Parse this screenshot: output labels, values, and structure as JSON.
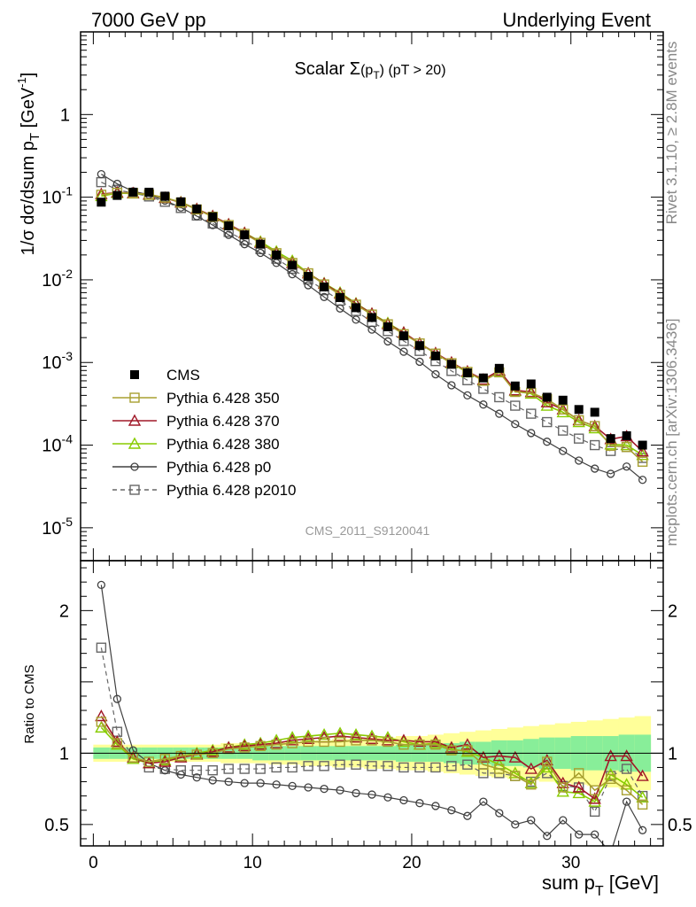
{
  "header": {
    "left": "7000 GeV pp",
    "right": "Underlying Event"
  },
  "side": {
    "rivet": "Rivet 3.1.10, ≥ 2.8M events",
    "source": "mcplots.cern.ch [arXiv:1306.3436]"
  },
  "labels": {
    "analysis": "CMS_2011_S9120041",
    "ratio_ylabel": "Ratio to CMS"
  },
  "title_parts": {
    "pre": "Scalar ",
    "sigma": "Σ",
    "args": "(p",
    "sub": "T",
    "close": ")",
    "cut": " (pT > 20)"
  },
  "ylabel_parts": {
    "main": "1/σ dσ/dsum p",
    "sub": "T",
    "unit": " [GeV",
    "exp": "-1",
    "close": "]"
  },
  "xlabel_parts": {
    "main": "sum p",
    "sub": "T",
    "unit": " [GeV]"
  },
  "colors": {
    "cms": "#000000",
    "p350": "#a8a030",
    "p370": "#a01828",
    "p380": "#88cc00",
    "p0": "#404040",
    "p2010": "#666666",
    "band_outer": "#ffff99",
    "band_inner": "#88ee99"
  },
  "chart_data": {
    "type": "line",
    "x": [
      0.5,
      1.5,
      2.5,
      3.5,
      4.5,
      5.5,
      6.5,
      7.5,
      8.5,
      9.5,
      10.5,
      11.5,
      12.5,
      13.5,
      14.5,
      15.5,
      16.5,
      17.5,
      18.5,
      19.5,
      20.5,
      21.5,
      22.5,
      23.5,
      24.5,
      25.5,
      26.5,
      27.5,
      28.5,
      29.5,
      30.5,
      31.5,
      32.5,
      33.5,
      34.5
    ],
    "main": {
      "yscale": "log",
      "ylim": [
        4e-06,
        10
      ],
      "yticks": [
        {
          "v": 1e-05,
          "base": "10",
          "exp": "-5"
        },
        {
          "v": 0.0001,
          "base": "10",
          "exp": "-4"
        },
        {
          "v": 0.001,
          "base": "10",
          "exp": "-3"
        },
        {
          "v": 0.01,
          "base": "10",
          "exp": "-2"
        },
        {
          "v": 0.1,
          "base": "10",
          "exp": "-1"
        },
        {
          "v": 1,
          "base": "1",
          "exp": ""
        }
      ]
    },
    "ratio": {
      "ylim": [
        0.35,
        2.35
      ],
      "yticks": [
        {
          "v": 0.5,
          "label": "0.5"
        },
        {
          "v": 1,
          "label": "1"
        },
        {
          "v": 2,
          "label": "2"
        }
      ],
      "band_inner_halfwidth": [
        0.04,
        0.04,
        0.04,
        0.04,
        0.04,
        0.04,
        0.04,
        0.04,
        0.04,
        0.04,
        0.05,
        0.05,
        0.05,
        0.05,
        0.05,
        0.05,
        0.05,
        0.05,
        0.05,
        0.06,
        0.06,
        0.06,
        0.07,
        0.08,
        0.08,
        0.09,
        0.09,
        0.1,
        0.11,
        0.11,
        0.12,
        0.12,
        0.12,
        0.13,
        0.13
      ],
      "band_outer_halfwidth": [
        0.06,
        0.06,
        0.06,
        0.06,
        0.06,
        0.06,
        0.06,
        0.06,
        0.07,
        0.07,
        0.07,
        0.08,
        0.08,
        0.09,
        0.09,
        0.1,
        0.1,
        0.11,
        0.11,
        0.12,
        0.12,
        0.13,
        0.14,
        0.15,
        0.16,
        0.17,
        0.18,
        0.19,
        0.2,
        0.21,
        0.22,
        0.23,
        0.24,
        0.25,
        0.26
      ]
    },
    "xlim": [
      -0.8,
      35.8
    ],
    "xticks": [
      0,
      10,
      20,
      30
    ],
    "series": [
      {
        "name": "CMS",
        "key": "cms",
        "marker": "filled-square",
        "values": [
          0.087,
          0.105,
          0.115,
          0.115,
          0.103,
          0.088,
          0.072,
          0.058,
          0.045,
          0.035,
          0.027,
          0.02,
          0.015,
          0.011,
          0.0082,
          0.0061,
          0.0046,
          0.0035,
          0.0027,
          0.0021,
          0.0016,
          0.0012,
          0.00095,
          0.00075,
          0.00065,
          0.00085,
          0.00052,
          0.00055,
          0.00038,
          0.00035,
          0.00027,
          0.00025,
          0.00012,
          0.00013,
          0.0001
        ]
      },
      {
        "name": "Pythia 6.428 350",
        "key": "p350",
        "marker": "open-square",
        "dash": false,
        "values": [
          0.107,
          0.113,
          0.112,
          0.108,
          0.099,
          0.086,
          0.071,
          0.058,
          0.046,
          0.036,
          0.028,
          0.021,
          0.016,
          0.012,
          0.0088,
          0.0066,
          0.005,
          0.0038,
          0.0029,
          0.0022,
          0.0017,
          0.00128,
          0.00098,
          0.00077,
          0.0006,
          0.00076,
          0.00044,
          0.00043,
          0.00036,
          0.00027,
          0.0002,
          0.00017,
          9.8e-05,
          9.5e-05,
          6.3e-05
        ],
        "ratio": [
          1.22,
          1.07,
          0.97,
          0.94,
          0.96,
          0.98,
          0.99,
          1.0,
          1.03,
          1.04,
          1.05,
          1.06,
          1.07,
          1.08,
          1.08,
          1.08,
          1.09,
          1.09,
          1.08,
          1.06,
          1.06,
          1.06,
          1.02,
          1.02,
          0.92,
          0.89,
          0.84,
          0.78,
          0.94,
          0.76,
          0.86,
          0.74,
          0.82,
          0.74,
          0.64
        ]
      },
      {
        "name": "Pythia 6.428 370",
        "key": "p370",
        "marker": "open-triangle",
        "dash": false,
        "values": [
          0.109,
          0.114,
          0.112,
          0.108,
          0.098,
          0.086,
          0.072,
          0.059,
          0.047,
          0.037,
          0.028,
          0.021,
          0.016,
          0.012,
          0.009,
          0.0068,
          0.0051,
          0.0039,
          0.0029,
          0.0023,
          0.0017,
          0.0013,
          0.001,
          0.00078,
          0.00062,
          0.0008,
          0.00046,
          0.00044,
          0.00033,
          0.00027,
          0.0002,
          0.00017,
          0.000118,
          0.000128,
          8.4e-05
        ],
        "ratio": [
          1.26,
          1.08,
          0.97,
          0.93,
          0.94,
          0.97,
          0.99,
          1.01,
          1.04,
          1.05,
          1.06,
          1.07,
          1.09,
          1.1,
          1.11,
          1.12,
          1.11,
          1.1,
          1.09,
          1.09,
          1.08,
          1.08,
          1.04,
          1.06,
          0.97,
          0.98,
          0.97,
          0.89,
          0.95,
          0.79,
          0.76,
          0.68,
          0.98,
          0.98,
          0.84
        ]
      },
      {
        "name": "Pythia 6.428 380",
        "key": "p380",
        "marker": "open-triangle",
        "dash": false,
        "values": [
          0.103,
          0.112,
          0.111,
          0.107,
          0.098,
          0.087,
          0.072,
          0.059,
          0.047,
          0.037,
          0.029,
          0.022,
          0.017,
          0.012,
          0.0091,
          0.007,
          0.0052,
          0.0039,
          0.003,
          0.0023,
          0.0017,
          0.00128,
          0.00098,
          0.00076,
          0.00061,
          0.00078,
          0.00045,
          0.00042,
          0.0003,
          0.00025,
          0.00019,
          0.00016,
          0.000102,
          0.0001,
          7.6e-05
        ],
        "ratio": [
          1.18,
          1.06,
          0.96,
          0.93,
          0.95,
          0.98,
          1.0,
          1.02,
          1.04,
          1.06,
          1.07,
          1.09,
          1.11,
          1.12,
          1.13,
          1.14,
          1.13,
          1.12,
          1.11,
          1.08,
          1.06,
          1.07,
          1.03,
          1.01,
          0.97,
          0.92,
          0.86,
          0.79,
          0.9,
          0.73,
          0.72,
          0.66,
          0.85,
          0.78,
          0.69
        ]
      },
      {
        "name": "Pythia 6.428 p0",
        "key": "p0",
        "marker": "open-circle",
        "dash": false,
        "values": [
          0.19,
          0.145,
          0.118,
          0.107,
          0.091,
          0.075,
          0.059,
          0.046,
          0.035,
          0.027,
          0.0212,
          0.016,
          0.0117,
          0.0086,
          0.0062,
          0.0045,
          0.0033,
          0.0025,
          0.0018,
          0.00135,
          0.00102,
          0.00072,
          0.00053,
          0.0004,
          0.00031,
          0.00024,
          0.00018,
          0.00014,
          0.00011,
          8.5e-05,
          6.5e-05,
          5.2e-05,
          4.5e-05,
          5.5e-05,
          3.8e-05
        ],
        "ratio": [
          2.18,
          1.38,
          1.02,
          0.93,
          0.88,
          0.85,
          0.83,
          0.81,
          0.8,
          0.79,
          0.79,
          0.78,
          0.77,
          0.76,
          0.75,
          0.74,
          0.72,
          0.71,
          0.69,
          0.67,
          0.65,
          0.63,
          0.6,
          0.56,
          0.66,
          0.58,
          0.5,
          0.53,
          0.42,
          0.53,
          0.43,
          0.43,
          0.3,
          0.66,
          0.46
        ]
      },
      {
        "name": "Pythia 6.428 p2010",
        "key": "p2010",
        "marker": "open-square",
        "dash": true,
        "values": [
          0.152,
          0.123,
          0.112,
          0.102,
          0.088,
          0.074,
          0.06,
          0.048,
          0.038,
          0.03,
          0.0235,
          0.018,
          0.0136,
          0.0101,
          0.0075,
          0.0056,
          0.0042,
          0.0031,
          0.0024,
          0.00182,
          0.00138,
          0.00104,
          0.00079,
          0.00061,
          0.00048,
          0.00038,
          0.0003,
          0.00024,
          0.00019,
          0.00015,
          0.00012,
          0.0001,
          8.5e-05,
          9.5e-05,
          7e-05
        ],
        "ratio": [
          1.74,
          1.15,
          0.97,
          0.9,
          0.89,
          0.88,
          0.88,
          0.88,
          0.89,
          0.89,
          0.89,
          0.9,
          0.9,
          0.91,
          0.91,
          0.92,
          0.92,
          0.91,
          0.91,
          0.9,
          0.9,
          0.9,
          0.91,
          0.92,
          0.86,
          0.86,
          0.84,
          0.8,
          0.86,
          0.77,
          0.76,
          0.59,
          0.84,
          0.89,
          0.7
        ]
      }
    ]
  }
}
